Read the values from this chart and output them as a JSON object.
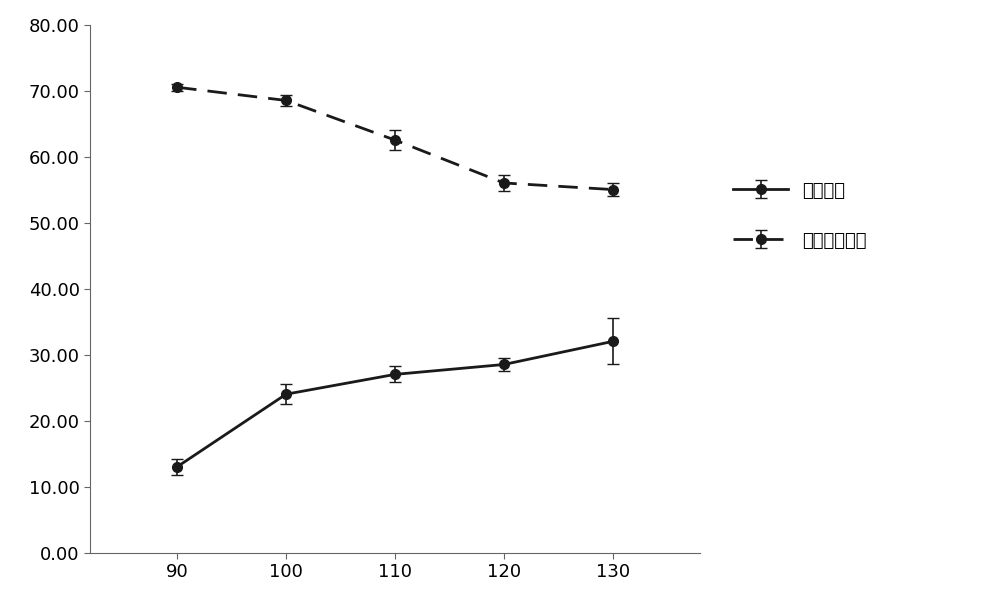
{
  "x": [
    90,
    100,
    110,
    120,
    130
  ],
  "solid_y": [
    13.0,
    24.0,
    27.0,
    28.5,
    32.0
  ],
  "solid_yerr": [
    1.2,
    1.5,
    1.2,
    1.0,
    3.5
  ],
  "dashed_y": [
    70.5,
    68.5,
    62.5,
    56.0,
    55.0
  ],
  "dashed_yerr": [
    0.5,
    0.8,
    1.5,
    1.2,
    1.0
  ],
  "solid_label": "产品得率",
  "dashed_label": "棕榈油酸含量",
  "ylim": [
    0.0,
    80.0
  ],
  "yticks": [
    0.0,
    10.0,
    20.0,
    30.0,
    40.0,
    50.0,
    60.0,
    70.0,
    80.0
  ],
  "xticks": [
    90,
    100,
    110,
    120,
    130
  ],
  "line_color": "#1a1a1a",
  "marker": "o",
  "markersize": 7,
  "linewidth": 2.0,
  "fontsize_legend": 13,
  "fontsize_tick": 13,
  "background_color": "#ffffff"
}
